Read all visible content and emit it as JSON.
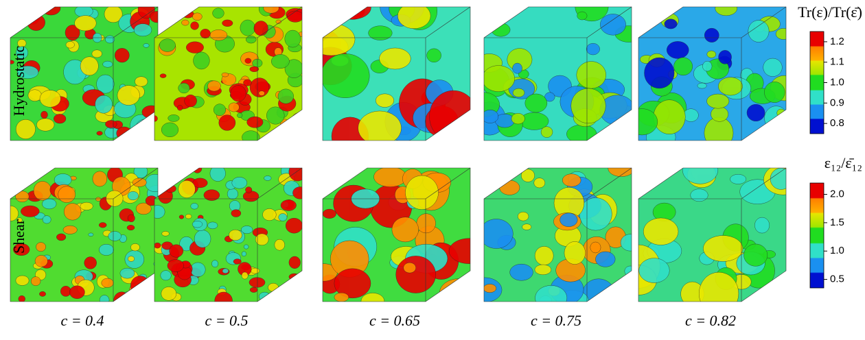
{
  "rows": [
    {
      "label": "Hydrostatic"
    },
    {
      "label": "Shear"
    }
  ],
  "columns": [
    {
      "label": "c = 0.4"
    },
    {
      "label": "c = 0.5"
    },
    {
      "label": "c = 0.65"
    },
    {
      "label": "c = 0.75"
    },
    {
      "label": "c = 0.82"
    }
  ],
  "colorbars": [
    {
      "title": "Tr(ε)/Tr(ε̄)",
      "range": [
        0.75,
        1.25
      ],
      "ticks": [
        {
          "value": 1.2,
          "label": "1.2"
        },
        {
          "value": 1.1,
          "label": "1.1"
        },
        {
          "value": 1,
          "label": "1.0"
        },
        {
          "value": 0.9,
          "label": "0.9"
        },
        {
          "value": 0.8,
          "label": "0.8"
        }
      ]
    },
    {
      "title": "ε₁₂/ε̄₁₂",
      "range": [
        0.35,
        2.2
      ],
      "ticks": [
        {
          "value": 2,
          "label": "2.0"
        },
        {
          "value": 1.5,
          "label": "1.5"
        },
        {
          "value": 1,
          "label": "1.0"
        },
        {
          "value": 0.5,
          "label": "0.5"
        }
      ]
    }
  ]
}
